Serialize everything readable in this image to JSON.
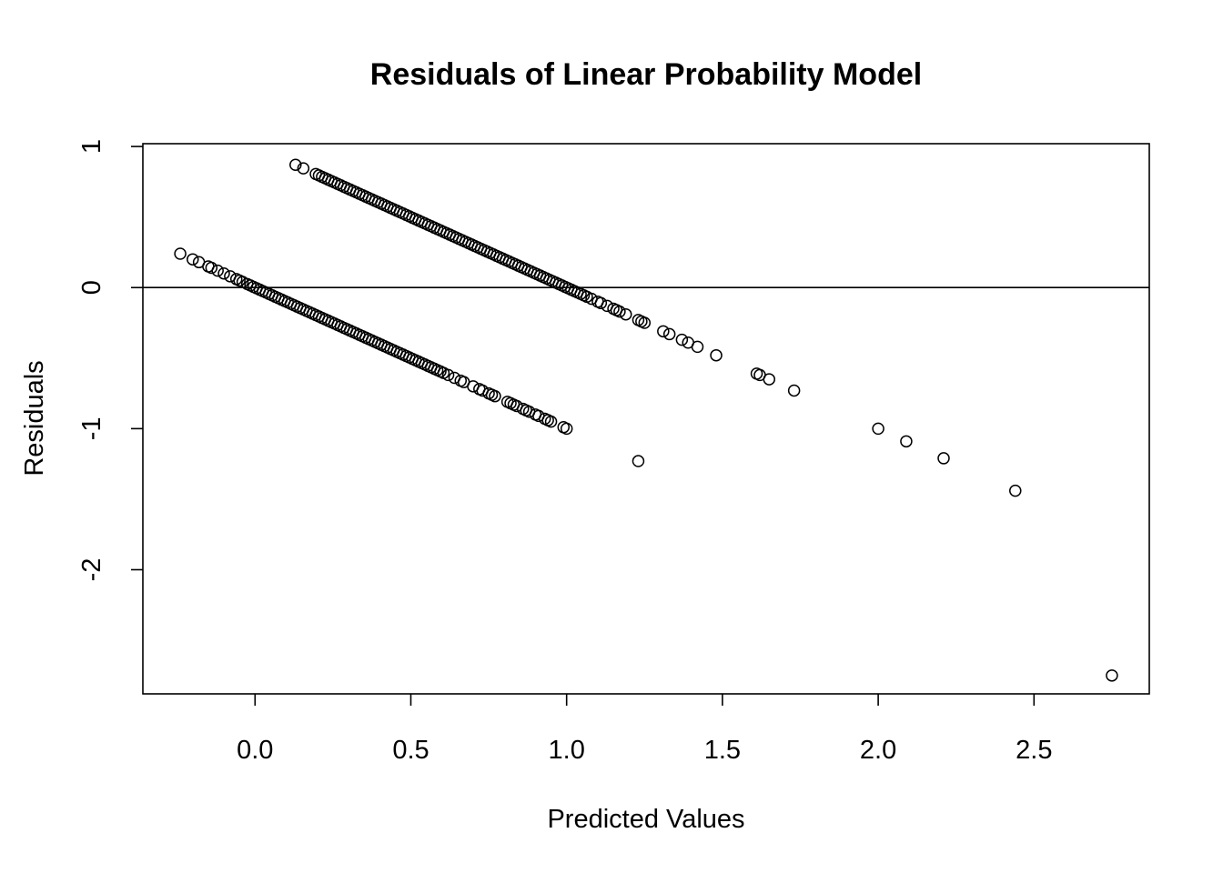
{
  "chart_data": {
    "type": "scatter",
    "title": "Residuals of Linear Probability Model",
    "xlabel": "Predicted Values",
    "ylabel": "Residuals",
    "xlim": [
      -0.36,
      2.87
    ],
    "ylim": [
      -2.88,
      1.02
    ],
    "x_ticks": [
      0.0,
      0.5,
      1.0,
      1.5,
      2.0,
      2.5
    ],
    "x_tick_labels": [
      "0.0",
      "0.5",
      "1.0",
      "1.5",
      "2.0",
      "2.5"
    ],
    "y_ticks": [
      1,
      0,
      -1,
      -2
    ],
    "y_tick_labels": [
      "1",
      "0",
      "-1",
      "-2"
    ],
    "reference_line": {
      "y": 0
    },
    "grid": false,
    "series": [
      {
        "x": [
          0.13,
          0.155,
          0.195,
          0.205,
          0.215,
          0.225,
          0.235,
          0.245,
          0.255,
          0.265,
          0.275,
          0.285,
          0.295,
          0.305,
          0.315,
          0.325,
          0.335,
          0.345,
          0.355,
          0.365,
          0.375,
          0.385,
          0.395,
          0.405,
          0.415,
          0.425,
          0.435,
          0.445,
          0.455,
          0.465,
          0.475,
          0.485,
          0.495,
          0.505,
          0.515,
          0.525,
          0.535,
          0.545,
          0.555,
          0.565,
          0.575,
          0.585,
          0.595,
          0.605,
          0.615,
          0.625,
          0.635,
          0.645,
          0.655,
          0.665,
          0.675,
          0.685,
          0.695,
          0.705,
          0.715,
          0.725,
          0.735,
          0.745,
          0.755,
          0.765,
          0.775,
          0.785,
          0.795,
          0.805,
          0.815,
          0.825,
          0.835,
          0.845,
          0.855,
          0.865,
          0.875,
          0.885,
          0.895,
          0.905,
          0.915,
          0.925,
          0.935,
          0.945,
          0.955,
          0.965,
          0.975,
          0.985,
          0.995,
          1.005,
          1.015,
          1.025,
          1.035,
          1.045,
          1.055,
          1.065,
          1.08,
          1.1,
          1.11,
          1.13,
          1.15,
          1.16,
          1.17,
          1.19,
          1.23,
          1.24,
          1.25,
          1.31,
          1.33,
          1.37,
          1.39,
          1.42,
          1.48,
          1.61,
          1.62,
          1.65,
          1.73,
          2.0,
          2.09,
          2.21,
          2.44,
          2.75
        ],
        "y": [
          0.87,
          0.845,
          0.805,
          0.795,
          0.785,
          0.775,
          0.765,
          0.755,
          0.745,
          0.735,
          0.725,
          0.715,
          0.705,
          0.695,
          0.685,
          0.675,
          0.665,
          0.655,
          0.645,
          0.635,
          0.625,
          0.615,
          0.605,
          0.595,
          0.585,
          0.575,
          0.565,
          0.555,
          0.545,
          0.535,
          0.525,
          0.515,
          0.505,
          0.495,
          0.485,
          0.475,
          0.465,
          0.455,
          0.445,
          0.435,
          0.425,
          0.415,
          0.405,
          0.395,
          0.385,
          0.375,
          0.365,
          0.355,
          0.345,
          0.335,
          0.325,
          0.315,
          0.305,
          0.295,
          0.285,
          0.275,
          0.265,
          0.255,
          0.245,
          0.235,
          0.225,
          0.215,
          0.205,
          0.195,
          0.185,
          0.175,
          0.165,
          0.155,
          0.145,
          0.135,
          0.125,
          0.115,
          0.105,
          0.095,
          0.085,
          0.075,
          0.065,
          0.055,
          0.045,
          0.035,
          0.025,
          0.015,
          0.005,
          -0.005,
          -0.015,
          -0.025,
          -0.035,
          -0.045,
          -0.055,
          -0.065,
          -0.08,
          -0.1,
          -0.11,
          -0.13,
          -0.15,
          -0.16,
          -0.17,
          -0.19,
          -0.23,
          -0.24,
          -0.25,
          -0.31,
          -0.33,
          -0.37,
          -0.39,
          -0.42,
          -0.48,
          -0.61,
          -0.62,
          -0.65,
          -0.73,
          -1.0,
          -1.09,
          -1.21,
          -1.44,
          -2.75
        ]
      },
      {
        "x": [
          -0.24,
          -0.2,
          -0.18,
          -0.15,
          -0.14,
          -0.12,
          -0.1,
          -0.08,
          -0.06,
          -0.05,
          -0.04,
          -0.025,
          -0.015,
          -0.005,
          0.005,
          0.015,
          0.025,
          0.035,
          0.045,
          0.055,
          0.065,
          0.075,
          0.085,
          0.095,
          0.105,
          0.115,
          0.125,
          0.135,
          0.145,
          0.155,
          0.165,
          0.175,
          0.185,
          0.195,
          0.205,
          0.215,
          0.225,
          0.235,
          0.245,
          0.255,
          0.265,
          0.275,
          0.285,
          0.295,
          0.305,
          0.315,
          0.325,
          0.335,
          0.345,
          0.355,
          0.365,
          0.375,
          0.385,
          0.395,
          0.405,
          0.415,
          0.425,
          0.435,
          0.445,
          0.455,
          0.465,
          0.475,
          0.485,
          0.495,
          0.505,
          0.515,
          0.525,
          0.535,
          0.545,
          0.555,
          0.565,
          0.575,
          0.585,
          0.595,
          0.605,
          0.62,
          0.64,
          0.66,
          0.67,
          0.7,
          0.72,
          0.73,
          0.75,
          0.76,
          0.77,
          0.81,
          0.82,
          0.83,
          0.84,
          0.86,
          0.87,
          0.88,
          0.9,
          0.91,
          0.93,
          0.94,
          0.95,
          0.99,
          1.0,
          1.23
        ],
        "y": [
          0.24,
          0.2,
          0.18,
          0.15,
          0.14,
          0.12,
          0.1,
          0.08,
          0.06,
          0.05,
          0.04,
          0.025,
          0.015,
          0.005,
          -0.005,
          -0.015,
          -0.025,
          -0.035,
          -0.045,
          -0.055,
          -0.065,
          -0.075,
          -0.085,
          -0.095,
          -0.105,
          -0.115,
          -0.125,
          -0.135,
          -0.145,
          -0.155,
          -0.165,
          -0.175,
          -0.185,
          -0.195,
          -0.205,
          -0.215,
          -0.225,
          -0.235,
          -0.245,
          -0.255,
          -0.265,
          -0.275,
          -0.285,
          -0.295,
          -0.305,
          -0.315,
          -0.325,
          -0.335,
          -0.345,
          -0.355,
          -0.365,
          -0.375,
          -0.385,
          -0.395,
          -0.405,
          -0.415,
          -0.425,
          -0.435,
          -0.445,
          -0.455,
          -0.465,
          -0.475,
          -0.485,
          -0.495,
          -0.505,
          -0.515,
          -0.525,
          -0.535,
          -0.545,
          -0.555,
          -0.565,
          -0.575,
          -0.585,
          -0.595,
          -0.605,
          -0.62,
          -0.64,
          -0.66,
          -0.67,
          -0.7,
          -0.72,
          -0.73,
          -0.75,
          -0.76,
          -0.77,
          -0.81,
          -0.82,
          -0.83,
          -0.84,
          -0.86,
          -0.87,
          -0.88,
          -0.9,
          -0.91,
          -0.93,
          -0.94,
          -0.95,
          -0.99,
          -1.0,
          -1.23
        ]
      }
    ]
  }
}
